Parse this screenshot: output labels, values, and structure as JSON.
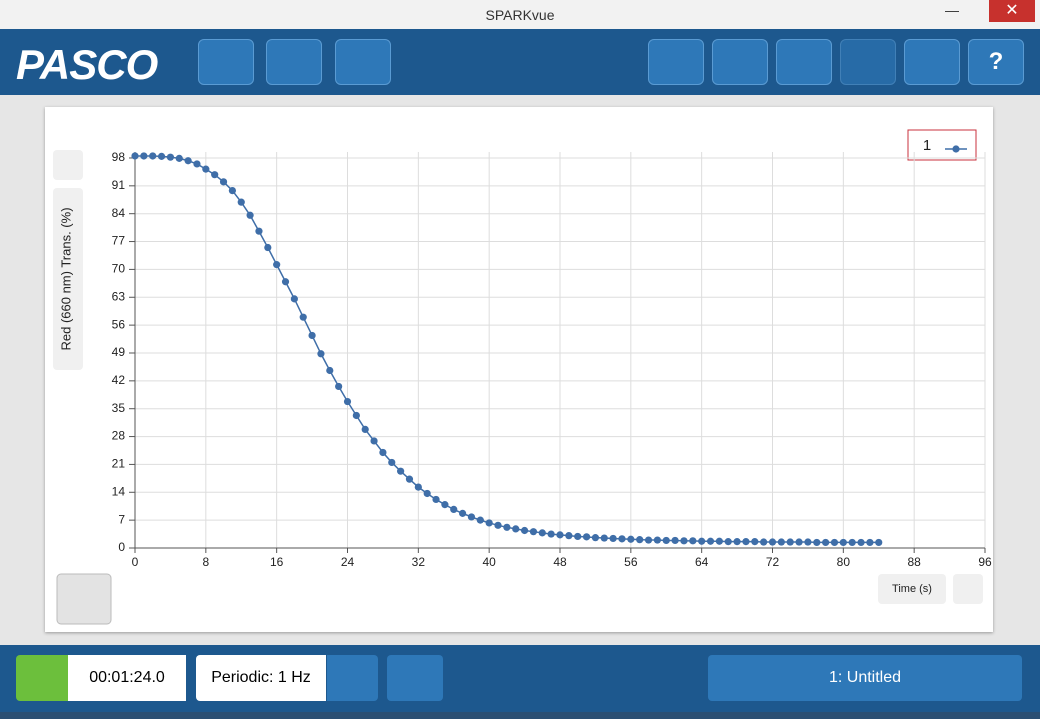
{
  "window": {
    "title": "SPARKvue"
  },
  "toolbar": {
    "logo": "PASCO"
  },
  "chart_data": {
    "type": "scatter-line",
    "ylabel": "Red (660 nm) Trans. (%)",
    "xlabel": "Time (s)",
    "x": [
      0,
      1,
      2,
      3,
      4,
      5,
      6,
      7,
      8,
      9,
      10,
      11,
      12,
      13,
      14,
      15,
      16,
      17,
      18,
      19,
      20,
      21,
      22,
      23,
      24,
      25,
      26,
      27,
      28,
      29,
      30,
      31,
      32,
      33,
      34,
      35,
      36,
      37,
      38,
      39,
      40,
      41,
      42,
      43,
      44,
      45,
      46,
      47,
      48,
      49,
      50,
      51,
      52,
      53,
      54,
      55,
      56,
      57,
      58,
      59,
      60,
      61,
      62,
      63,
      64,
      65,
      66,
      67,
      68,
      69,
      70,
      71,
      72,
      73,
      74,
      75,
      76,
      77,
      78,
      79,
      80,
      81,
      82,
      83,
      84
    ],
    "series": [
      {
        "name": "1",
        "color": "#3f6ea8",
        "values": [
          98.5,
          98.5,
          98.5,
          98.4,
          98.2,
          97.9,
          97.3,
          96.5,
          95.2,
          93.8,
          92,
          89.8,
          86.9,
          83.6,
          79.6,
          75.5,
          71.2,
          66.9,
          62.6,
          58,
          53.4,
          48.8,
          44.6,
          40.6,
          36.8,
          33.3,
          29.8,
          26.9,
          24,
          21.5,
          19.3,
          17.3,
          15.3,
          13.7,
          12.2,
          10.9,
          9.7,
          8.7,
          7.8,
          7.0,
          6.3,
          5.7,
          5.2,
          4.8,
          4.4,
          4.1,
          3.8,
          3.5,
          3.3,
          3.1,
          2.9,
          2.8,
          2.6,
          2.5,
          2.4,
          2.3,
          2.2,
          2.1,
          2.0,
          2.0,
          1.9,
          1.9,
          1.8,
          1.8,
          1.7,
          1.7,
          1.7,
          1.6,
          1.6,
          1.6,
          1.6,
          1.5,
          1.5,
          1.5,
          1.5,
          1.5,
          1.5,
          1.4,
          1.4,
          1.4,
          1.4,
          1.4,
          1.4,
          1.4,
          1.4
        ]
      }
    ],
    "xlim": [
      0,
      96
    ],
    "ylim": [
      0,
      99.5
    ],
    "xticks": [
      0,
      8,
      16,
      24,
      32,
      40,
      48,
      56,
      64,
      72,
      80,
      88,
      96
    ],
    "yticks": [
      0,
      7,
      14,
      21,
      28,
      35,
      42,
      49,
      56,
      63,
      70,
      77,
      84,
      91,
      98
    ],
    "grid": true
  },
  "footer": {
    "elapsed": "00:01:24.0",
    "sample_rate": "Periodic: 1 Hz",
    "page": "1: Untitled"
  }
}
